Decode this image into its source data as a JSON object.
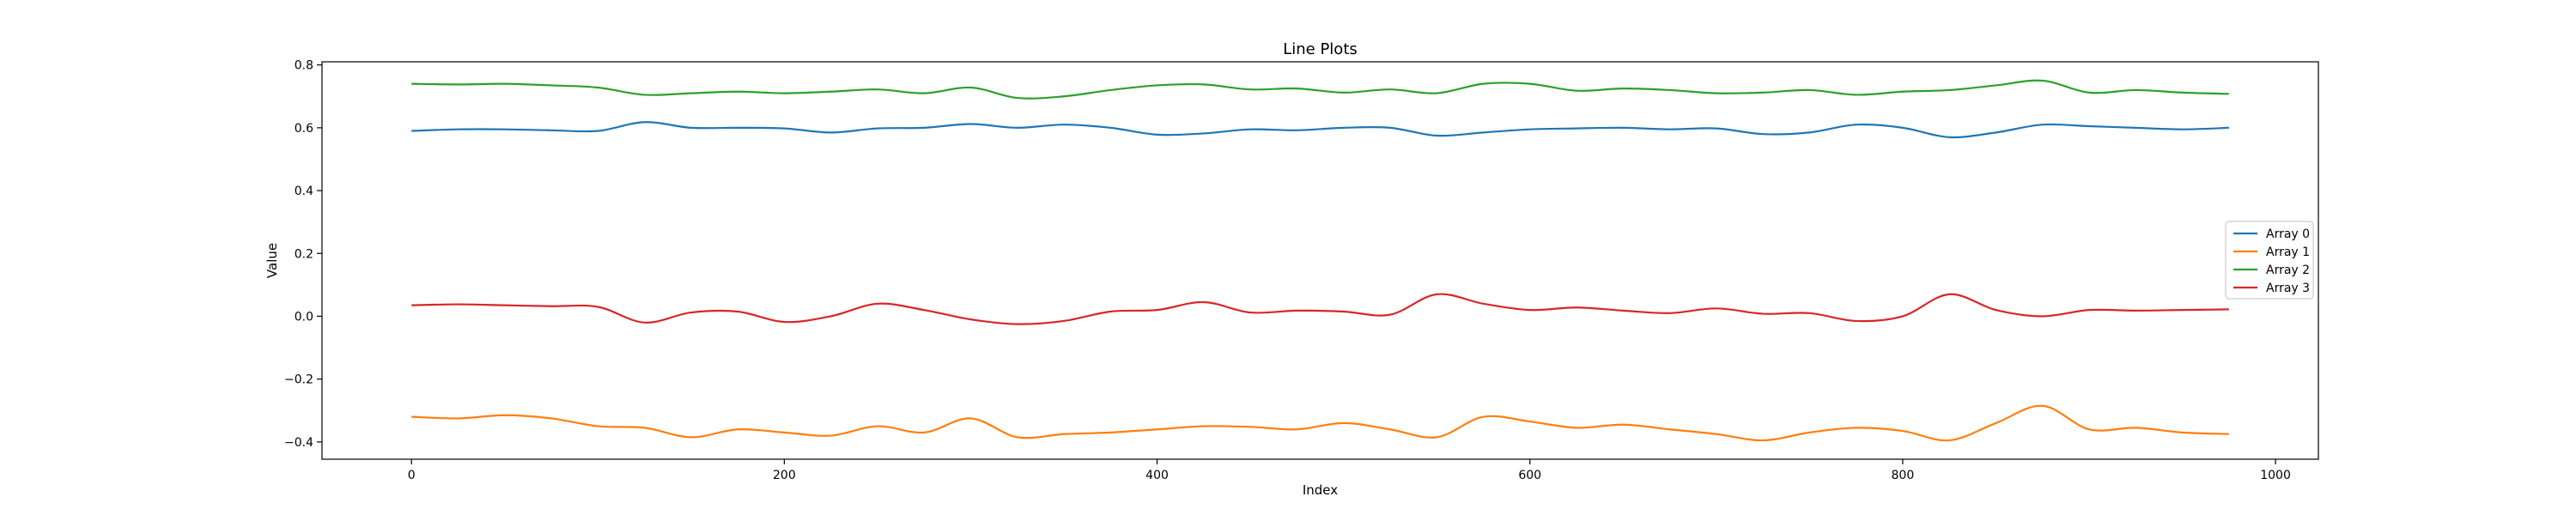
{
  "chart_data": {
    "type": "line",
    "title": "Line Plots",
    "xlabel": "Index",
    "ylabel": "Value",
    "xlim": [
      -48,
      1023
    ],
    "ylim": [
      -0.455,
      0.81
    ],
    "xticks": [
      0,
      200,
      400,
      600,
      800,
      1000
    ],
    "xtick_labels": [
      "0",
      "200",
      "400",
      "600",
      "800",
      "1000"
    ],
    "yticks": [
      -0.4,
      -0.2,
      0.0,
      0.2,
      0.4,
      0.6,
      0.8
    ],
    "ytick_labels": [
      "−0.4",
      "−0.2",
      "0.0",
      "0.2",
      "0.4",
      "0.6",
      "0.8"
    ],
    "grid": false,
    "legend_position": "center-right",
    "x": [
      0,
      25,
      50,
      75,
      100,
      125,
      150,
      175,
      200,
      225,
      250,
      275,
      300,
      325,
      350,
      375,
      400,
      425,
      450,
      475,
      500,
      525,
      550,
      575,
      600,
      625,
      650,
      675,
      700,
      725,
      750,
      775,
      800,
      825,
      850,
      875,
      900,
      925,
      950,
      975
    ],
    "series": [
      {
        "name": "Array 0",
        "color": "#1f77b4",
        "values": [
          0.59,
          0.595,
          0.595,
          0.592,
          0.59,
          0.618,
          0.6,
          0.6,
          0.598,
          0.585,
          0.598,
          0.6,
          0.612,
          0.6,
          0.61,
          0.6,
          0.578,
          0.582,
          0.595,
          0.592,
          0.6,
          0.6,
          0.575,
          0.585,
          0.595,
          0.598,
          0.6,
          0.595,
          0.598,
          0.58,
          0.585,
          0.61,
          0.6,
          0.57,
          0.585,
          0.61,
          0.605,
          0.6,
          0.595,
          0.6
        ]
      },
      {
        "name": "Array 1",
        "color": "#ff7f0e",
        "values": [
          -0.32,
          -0.325,
          -0.315,
          -0.325,
          -0.35,
          -0.355,
          -0.385,
          -0.36,
          -0.37,
          -0.38,
          -0.35,
          -0.37,
          -0.325,
          -0.385,
          -0.375,
          -0.37,
          -0.36,
          -0.35,
          -0.352,
          -0.36,
          -0.34,
          -0.36,
          -0.385,
          -0.32,
          -0.335,
          -0.355,
          -0.345,
          -0.36,
          -0.375,
          -0.395,
          -0.37,
          -0.355,
          -0.365,
          -0.395,
          -0.34,
          -0.285,
          -0.36,
          -0.355,
          -0.37,
          -0.375
        ]
      },
      {
        "name": "Array 2",
        "color": "#2ca02c",
        "values": [
          0.74,
          0.738,
          0.74,
          0.735,
          0.728,
          0.705,
          0.71,
          0.715,
          0.71,
          0.715,
          0.722,
          0.71,
          0.728,
          0.695,
          0.7,
          0.72,
          0.735,
          0.738,
          0.722,
          0.725,
          0.712,
          0.722,
          0.71,
          0.74,
          0.74,
          0.718,
          0.725,
          0.72,
          0.71,
          0.712,
          0.72,
          0.705,
          0.715,
          0.72,
          0.735,
          0.75,
          0.712,
          0.72,
          0.712,
          0.708
        ]
      },
      {
        "name": "Array 3",
        "color": "#d62728",
        "values": [
          0.035,
          0.038,
          0.035,
          0.032,
          0.03,
          -0.02,
          0.012,
          0.015,
          -0.018,
          0.0,
          0.04,
          0.02,
          -0.01,
          -0.025,
          -0.015,
          0.015,
          0.02,
          0.045,
          0.012,
          0.018,
          0.015,
          0.005,
          0.07,
          0.04,
          0.02,
          0.028,
          0.018,
          0.01,
          0.025,
          0.008,
          0.01,
          -0.015,
          0.0,
          0.07,
          0.02,
          0.0,
          0.02,
          0.018,
          0.02,
          0.022
        ]
      }
    ]
  }
}
